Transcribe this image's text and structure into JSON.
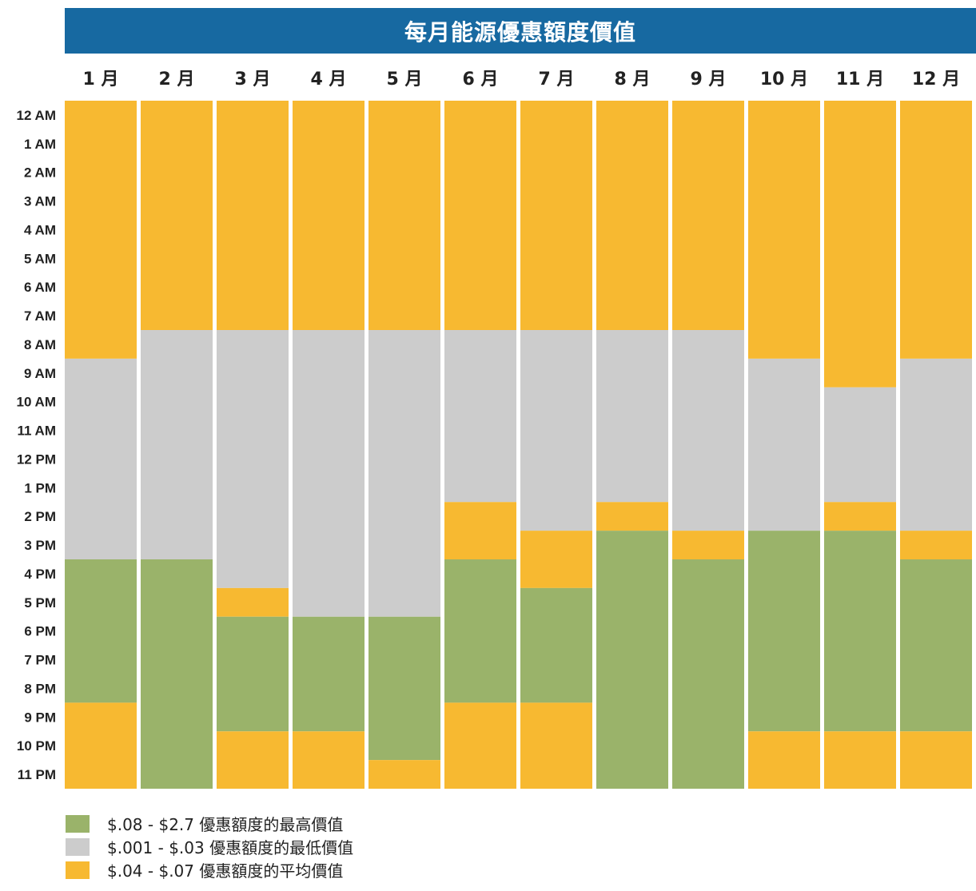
{
  "chart_data": {
    "type": "heatmap",
    "title": "每月能源優惠額度價值",
    "months": [
      "1 月",
      "2 月",
      "3 月",
      "4 月",
      "5 月",
      "6 月",
      "7 月",
      "8 月",
      "9 月",
      "10 月",
      "11 月",
      "12 月"
    ],
    "hours": [
      "12 AM",
      "1 AM",
      "2 AM",
      "3 AM",
      "4 AM",
      "5 AM",
      "6 AM",
      "7 AM",
      "8 AM",
      "9 AM",
      "10 AM",
      "11 AM",
      "12 PM",
      "1 PM",
      "2 PM",
      "3 PM",
      "4 PM",
      "5 PM",
      "6 PM",
      "7 PM",
      "8 PM",
      "9 PM",
      "10 PM",
      "11 PM"
    ],
    "categories": [
      {
        "key": "H",
        "label": "$.08 - $2.7 優惠額度的最高價值",
        "color": "#9ab36a"
      },
      {
        "key": "L",
        "label": "$.001 - $.03 優惠額度的最低價值",
        "color": "#cccccc"
      },
      {
        "key": "A",
        "label": "$.04 - $.07 優惠額度的平均價值",
        "color": "#f7b931"
      }
    ],
    "values": [
      [
        "A",
        "A",
        "A",
        "A",
        "A",
        "A",
        "A",
        "A",
        "A",
        "L",
        "L",
        "L",
        "L",
        "L",
        "L",
        "L",
        "H",
        "H",
        "H",
        "H",
        "H",
        "A",
        "A",
        "A"
      ],
      [
        "A",
        "A",
        "A",
        "A",
        "A",
        "A",
        "A",
        "A",
        "L",
        "L",
        "L",
        "L",
        "L",
        "L",
        "L",
        "L",
        "H",
        "H",
        "H",
        "H",
        "H",
        "H",
        "H",
        "H"
      ],
      [
        "A",
        "A",
        "A",
        "A",
        "A",
        "A",
        "A",
        "A",
        "L",
        "L",
        "L",
        "L",
        "L",
        "L",
        "L",
        "L",
        "L",
        "A",
        "H",
        "H",
        "H",
        "H",
        "A",
        "A"
      ],
      [
        "A",
        "A",
        "A",
        "A",
        "A",
        "A",
        "A",
        "A",
        "L",
        "L",
        "L",
        "L",
        "L",
        "L",
        "L",
        "L",
        "L",
        "L",
        "H",
        "H",
        "H",
        "H",
        "A",
        "A"
      ],
      [
        "A",
        "A",
        "A",
        "A",
        "A",
        "A",
        "A",
        "A",
        "L",
        "L",
        "L",
        "L",
        "L",
        "L",
        "L",
        "L",
        "L",
        "L",
        "H",
        "H",
        "H",
        "H",
        "H",
        "A"
      ],
      [
        "A",
        "A",
        "A",
        "A",
        "A",
        "A",
        "A",
        "A",
        "L",
        "L",
        "L",
        "L",
        "L",
        "L",
        "A",
        "A",
        "H",
        "H",
        "H",
        "H",
        "H",
        "A",
        "A",
        "A"
      ],
      [
        "A",
        "A",
        "A",
        "A",
        "A",
        "A",
        "A",
        "A",
        "L",
        "L",
        "L",
        "L",
        "L",
        "L",
        "L",
        "A",
        "A",
        "H",
        "H",
        "H",
        "H",
        "A",
        "A",
        "A"
      ],
      [
        "A",
        "A",
        "A",
        "A",
        "A",
        "A",
        "A",
        "A",
        "L",
        "L",
        "L",
        "L",
        "L",
        "L",
        "A",
        "H",
        "H",
        "H",
        "H",
        "H",
        "H",
        "H",
        "H",
        "H"
      ],
      [
        "A",
        "A",
        "A",
        "A",
        "A",
        "A",
        "A",
        "A",
        "L",
        "L",
        "L",
        "L",
        "L",
        "L",
        "L",
        "A",
        "H",
        "H",
        "H",
        "H",
        "H",
        "H",
        "H",
        "H"
      ],
      [
        "A",
        "A",
        "A",
        "A",
        "A",
        "A",
        "A",
        "A",
        "A",
        "L",
        "L",
        "L",
        "L",
        "L",
        "L",
        "H",
        "H",
        "H",
        "H",
        "H",
        "H",
        "H",
        "A",
        "A"
      ],
      [
        "A",
        "A",
        "A",
        "A",
        "A",
        "A",
        "A",
        "A",
        "A",
        "A",
        "L",
        "L",
        "L",
        "L",
        "A",
        "H",
        "H",
        "H",
        "H",
        "H",
        "H",
        "H",
        "A",
        "A"
      ],
      [
        "A",
        "A",
        "A",
        "A",
        "A",
        "A",
        "A",
        "A",
        "A",
        "L",
        "L",
        "L",
        "L",
        "L",
        "L",
        "A",
        "H",
        "H",
        "H",
        "H",
        "H",
        "H",
        "A",
        "A"
      ]
    ]
  }
}
